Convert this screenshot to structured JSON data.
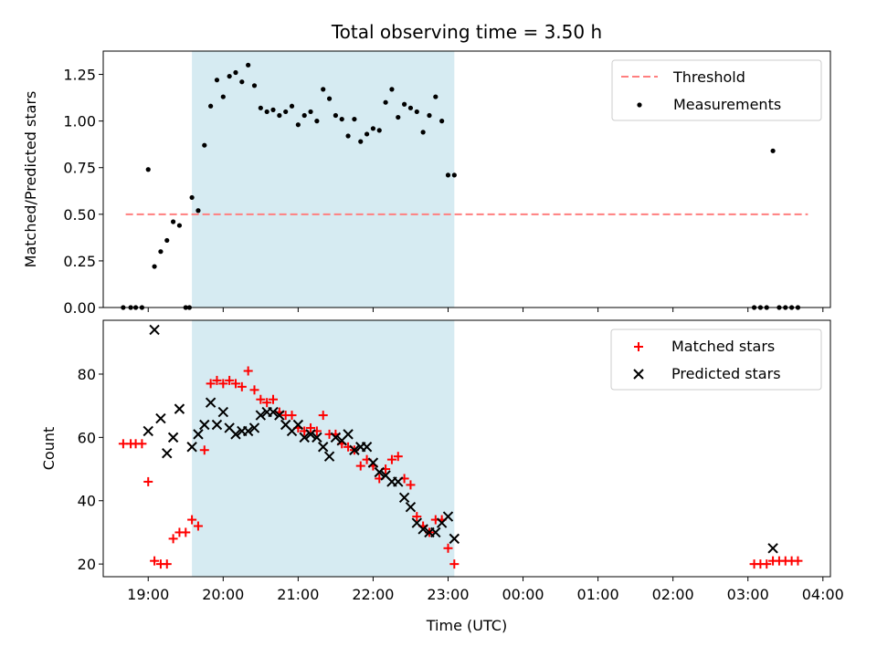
{
  "title": "Total observing time = 3.50 h",
  "colors": {
    "threshold": "#ff7f7f",
    "measurement": "#000000",
    "matched": "#ff0000",
    "predicted": "#000000",
    "window": "#add8e6"
  },
  "chart_data": [
    {
      "type": "scatter",
      "ylabel": "Matched/Predicted stars",
      "xlim": [
        "18:24",
        "28:06"
      ],
      "ylim": [
        0,
        1.375
      ],
      "ytick_labels": [
        "0.00",
        "0.25",
        "0.50",
        "0.75",
        "1.00",
        "1.25"
      ],
      "ytick_values": [
        0,
        0.25,
        0.5,
        0.75,
        1.0,
        1.25
      ],
      "observing_window": [
        "19:35",
        "23:05"
      ],
      "legend": {
        "placement": "top-right",
        "entries": [
          "Threshold",
          "Measurements"
        ]
      },
      "threshold": {
        "name": "Threshold",
        "y": 0.5,
        "x_range": [
          "18:42",
          "27:48"
        ]
      },
      "series": [
        {
          "name": "Measurements",
          "x": [
            "18:40",
            "18:46",
            "18:50",
            "18:55",
            "19:00",
            "19:05",
            "19:10",
            "19:15",
            "19:20",
            "19:25",
            "19:30",
            "19:33",
            "19:35",
            "19:40",
            "19:45",
            "19:50",
            "19:55",
            "20:00",
            "20:05",
            "20:10",
            "20:15",
            "20:20",
            "20:25",
            "20:30",
            "20:35",
            "20:40",
            "20:45",
            "20:50",
            "20:55",
            "21:00",
            "21:05",
            "21:10",
            "21:15",
            "21:20",
            "21:25",
            "21:30",
            "21:35",
            "21:40",
            "21:45",
            "21:50",
            "21:55",
            "22:00",
            "22:05",
            "22:10",
            "22:15",
            "22:20",
            "22:25",
            "22:30",
            "22:35",
            "22:40",
            "22:45",
            "22:50",
            "22:55",
            "23:00",
            "23:05",
            "27:05",
            "27:10",
            "27:15",
            "27:20",
            "27:25",
            "27:30",
            "27:35",
            "27:40"
          ],
          "y": [
            0.0,
            0.0,
            0.0,
            0.0,
            0.74,
            0.22,
            0.3,
            0.36,
            0.46,
            0.44,
            0.0,
            0.0,
            0.59,
            0.52,
            0.87,
            1.08,
            1.22,
            1.13,
            1.24,
            1.26,
            1.21,
            1.3,
            1.19,
            1.07,
            1.05,
            1.06,
            1.03,
            1.05,
            1.08,
            0.98,
            1.03,
            1.05,
            1.0,
            1.17,
            1.12,
            1.03,
            1.01,
            0.92,
            1.01,
            0.89,
            0.93,
            0.96,
            0.95,
            1.1,
            1.17,
            1.02,
            1.09,
            1.07,
            1.05,
            0.94,
            1.03,
            1.13,
            1.0,
            0.71,
            0.71,
            0.0,
            0.0,
            0.0,
            0.84,
            0.0,
            0.0,
            0.0,
            0.0
          ]
        }
      ]
    },
    {
      "type": "scatter",
      "xlabel": "Time (UTC)",
      "ylabel": "Count",
      "xlim": [
        "18:24",
        "28:06"
      ],
      "ylim": [
        16,
        97
      ],
      "ytick_labels": [
        "20",
        "40",
        "60",
        "80"
      ],
      "ytick_values": [
        20,
        40,
        60,
        80
      ],
      "xtick_labels": [
        "19:00",
        "20:00",
        "21:00",
        "22:00",
        "23:00",
        "00:00",
        "01:00",
        "02:00",
        "03:00",
        "04:00"
      ],
      "xtick_values": [
        "19:00",
        "20:00",
        "21:00",
        "22:00",
        "23:00",
        "24:00",
        "25:00",
        "26:00",
        "27:00",
        "28:00"
      ],
      "observing_window": [
        "19:35",
        "23:05"
      ],
      "legend": {
        "placement": "top-right",
        "entries": [
          "Matched stars",
          "Predicted stars"
        ]
      },
      "series": [
        {
          "name": "Matched stars",
          "x": [
            "18:40",
            "18:46",
            "18:50",
            "18:55",
            "19:00",
            "19:05",
            "19:10",
            "19:15",
            "19:20",
            "19:25",
            "19:30",
            "19:35",
            "19:40",
            "19:45",
            "19:50",
            "19:55",
            "20:00",
            "20:05",
            "20:10",
            "20:15",
            "20:20",
            "20:25",
            "20:30",
            "20:35",
            "20:40",
            "20:45",
            "20:50",
            "20:55",
            "21:00",
            "21:05",
            "21:10",
            "21:15",
            "21:20",
            "21:25",
            "21:30",
            "21:35",
            "21:40",
            "21:45",
            "21:50",
            "21:55",
            "22:00",
            "22:05",
            "22:10",
            "22:15",
            "22:20",
            "22:25",
            "22:30",
            "22:35",
            "22:40",
            "22:45",
            "22:50",
            "22:55",
            "23:00",
            "23:05",
            "27:05",
            "27:10",
            "27:15",
            "27:20",
            "27:25",
            "27:30",
            "27:35",
            "27:40"
          ],
          "y": [
            58,
            58,
            58,
            58,
            46,
            21,
            20,
            20,
            28,
            30,
            30,
            34,
            32,
            56,
            77,
            78,
            77,
            78,
            77,
            76,
            81,
            75,
            72,
            71,
            72,
            68,
            67,
            67,
            63,
            62,
            63,
            62,
            67,
            61,
            61,
            58,
            57,
            56,
            51,
            53,
            51,
            47,
            50,
            53,
            54,
            47,
            45,
            35,
            32,
            30,
            34,
            34,
            25,
            20,
            20,
            20,
            20,
            21,
            21,
            21,
            21,
            21
          ]
        },
        {
          "name": "Predicted stars",
          "x": [
            "19:00",
            "19:05",
            "19:10",
            "19:15",
            "19:20",
            "19:25",
            "19:35",
            "19:40",
            "19:45",
            "19:50",
            "19:55",
            "20:00",
            "20:05",
            "20:10",
            "20:15",
            "20:20",
            "20:25",
            "20:30",
            "20:35",
            "20:40",
            "20:45",
            "20:50",
            "20:55",
            "21:00",
            "21:05",
            "21:10",
            "21:15",
            "21:20",
            "21:25",
            "21:30",
            "21:35",
            "21:40",
            "21:45",
            "21:50",
            "21:55",
            "22:00",
            "22:05",
            "22:10",
            "22:15",
            "22:20",
            "22:25",
            "22:30",
            "22:35",
            "22:40",
            "22:45",
            "22:50",
            "22:55",
            "23:00",
            "23:05",
            "27:20"
          ],
          "y": [
            62,
            94,
            66,
            55,
            60,
            69,
            57,
            61,
            64,
            71,
            64,
            68,
            63,
            61,
            62,
            62,
            63,
            67,
            68,
            68,
            67,
            64,
            62,
            64,
            60,
            61,
            60,
            57,
            54,
            60,
            59,
            61,
            56,
            57,
            57,
            52,
            49,
            48,
            46,
            46,
            41,
            38,
            33,
            31,
            30,
            30,
            33,
            35,
            28,
            25
          ]
        }
      ]
    }
  ]
}
